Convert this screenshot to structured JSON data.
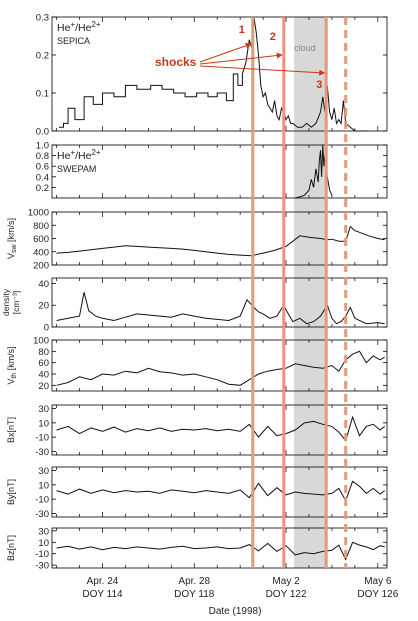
{
  "figure": {
    "xlabel": "Date (1998)",
    "x_ticks": [
      {
        "doy": 114,
        "line1": "Apr. 24",
        "line2": "DOY 114"
      },
      {
        "doy": 118,
        "line1": "Apr. 28",
        "line2": "DOY 118"
      },
      {
        "doy": 122,
        "line1": "May 2",
        "line2": "DOY 122"
      },
      {
        "doy": 126,
        "line1": "May 6",
        "line2": "DOY 126"
      }
    ],
    "xlim": [
      111.8,
      126.4
    ],
    "cloud": {
      "label": "cloud",
      "start": 122.35,
      "end": 123.7
    },
    "shocks_label": "shocks",
    "shocks": [
      {
        "label": "1",
        "doy": 120.55,
        "style": "solid"
      },
      {
        "label": "2",
        "doy": 121.9,
        "style": "solid"
      },
      {
        "label": "3",
        "doy": 123.75,
        "style": "solid"
      },
      {
        "label": "",
        "doy": 124.6,
        "style": "dashed"
      }
    ],
    "colors": {
      "shock": "#e8977a",
      "shock_label": "#c8381a",
      "cloud": "#d8d8d8",
      "trace": "#111111",
      "cloud_trace": "#888888"
    }
  },
  "chart_data": [
    {
      "type": "line",
      "id": "sepica",
      "title_main": "He",
      "title_sup1": "+",
      "title_mid": "/He",
      "title_sup2": "2+",
      "subtitle": "SEPICA",
      "ylabel": "",
      "ylim": [
        0,
        0.3
      ],
      "yticks": [
        0.0,
        0.1,
        0.2,
        0.3
      ],
      "ytick_labels": [
        "0.0",
        "0.1",
        "0.2",
        "0.3"
      ],
      "x": [
        112.1,
        112.3,
        112.3,
        112.5,
        112.5,
        112.8,
        112.8,
        113.2,
        113.2,
        113.6,
        113.6,
        114.0,
        114.0,
        114.5,
        114.5,
        115.0,
        115.0,
        115.5,
        115.5,
        116.1,
        116.1,
        116.6,
        116.6,
        117.1,
        117.1,
        117.6,
        117.6,
        118.1,
        118.1,
        118.6,
        118.6,
        119.0,
        119.0,
        119.4,
        119.4,
        119.7,
        119.7,
        119.9,
        119.9,
        120.1,
        120.1,
        120.25,
        120.4,
        120.5,
        120.6,
        120.7,
        120.8,
        120.9,
        121.0,
        121.1,
        121.2,
        121.3,
        121.4,
        121.5,
        121.6,
        121.7,
        121.8,
        121.9,
        122.0,
        122.1,
        122.2,
        122.3,
        122.5,
        122.7,
        122.9,
        123.1,
        123.3,
        123.5,
        123.6,
        123.7,
        123.8,
        123.9,
        124.0,
        124.1,
        124.2,
        124.3,
        124.4,
        124.5,
        124.6,
        124.8,
        125.0,
        125.3,
        125.6
      ],
      "values": [
        0.01,
        0.01,
        0.02,
        0.02,
        0.06,
        0.06,
        0.03,
        0.03,
        0.09,
        0.09,
        0.07,
        0.07,
        0.1,
        0.1,
        0.09,
        0.09,
        0.12,
        0.12,
        0.11,
        0.11,
        0.12,
        0.12,
        0.11,
        0.11,
        0.1,
        0.1,
        0.09,
        0.09,
        0.1,
        0.1,
        0.09,
        0.09,
        0.1,
        0.1,
        0.08,
        0.08,
        0.15,
        0.15,
        0.12,
        0.12,
        0.15,
        0.18,
        0.24,
        0.22,
        0.3,
        0.26,
        0.2,
        0.12,
        0.09,
        0.1,
        0.07,
        0.06,
        0.05,
        0.08,
        0.04,
        0.03,
        0.06,
        0.05,
        0.03,
        0.04,
        0.02,
        0.02,
        0.01,
        0.01,
        0.02,
        0.01,
        0.02,
        0.05,
        0.09,
        0.05,
        0.12,
        0.05,
        0.03,
        0.06,
        0.02,
        0.03,
        0.02,
        0.08,
        0.02,
        0.01,
        0.0,
        0.0,
        0.0
      ]
    },
    {
      "type": "line",
      "id": "swepam",
      "title_main": "He",
      "title_sup1": "+",
      "title_mid": "/He",
      "title_sup2": "2+",
      "subtitle": "SWEPAM",
      "ylabel": "",
      "ylim": [
        0,
        1.0
      ],
      "yticks": [
        0.2,
        0.4,
        0.6,
        0.8,
        1.0
      ],
      "ytick_labels": [
        "0.2",
        "0.4",
        "0.6",
        "0.8",
        "1.0"
      ],
      "x": [
        122.4,
        122.6,
        122.8,
        123.0,
        123.1,
        123.2,
        123.3,
        123.4,
        123.45,
        123.5,
        123.55,
        123.6,
        123.65,
        123.7,
        123.8,
        123.9,
        124.0
      ],
      "values": [
        0.0,
        0.02,
        0.05,
        0.15,
        0.35,
        0.2,
        0.55,
        0.3,
        0.7,
        0.9,
        0.4,
        1.0,
        0.6,
        0.8,
        0.4,
        0.15,
        0.05
      ]
    },
    {
      "type": "line",
      "id": "vsw",
      "ylabel": "V",
      "ylabel_sub": "sw",
      "ylabel_units": " [km/s]",
      "ylim": [
        200,
        1000
      ],
      "yticks": [
        200,
        400,
        600,
        800,
        1000
      ],
      "ytick_labels": [
        "200",
        "400",
        "600",
        "800",
        "1000"
      ],
      "x": [
        112.0,
        112.5,
        113.0,
        113.5,
        114.0,
        114.5,
        115.0,
        115.5,
        116.0,
        116.5,
        117.0,
        117.5,
        118.0,
        118.5,
        119.0,
        119.5,
        120.0,
        120.5,
        121.0,
        121.5,
        122.0,
        122.3,
        122.6,
        123.0,
        123.5,
        123.8,
        124.0,
        124.3,
        124.6,
        124.8,
        125.0,
        125.3,
        125.6,
        126.0,
        126.3
      ],
      "values": [
        380,
        390,
        410,
        430,
        450,
        470,
        490,
        480,
        470,
        460,
        450,
        440,
        420,
        400,
        380,
        360,
        350,
        340,
        380,
        420,
        480,
        560,
        640,
        620,
        600,
        580,
        590,
        560,
        560,
        780,
        720,
        680,
        640,
        600,
        580
      ]
    },
    {
      "type": "line",
      "id": "density",
      "ylabel": "density",
      "ylabel_units": "[cm⁻³]",
      "ylim": [
        0,
        45
      ],
      "yticks": [
        0,
        20,
        40
      ],
      "ytick_labels": [
        "0",
        "20",
        "40"
      ],
      "x": [
        112.0,
        112.5,
        113.0,
        113.2,
        113.4,
        113.7,
        114.0,
        114.5,
        115.0,
        115.5,
        116.0,
        116.5,
        117.0,
        117.5,
        118.0,
        118.5,
        119.0,
        119.5,
        120.0,
        120.3,
        120.6,
        120.8,
        121.0,
        121.3,
        121.6,
        121.9,
        122.1,
        122.3,
        122.6,
        122.9,
        123.2,
        123.5,
        123.8,
        124.0,
        124.2,
        124.4,
        124.6,
        124.8,
        125.0,
        125.5,
        126.0,
        126.3
      ],
      "values": [
        6,
        8,
        10,
        32,
        15,
        10,
        8,
        6,
        9,
        12,
        11,
        10,
        9,
        12,
        10,
        8,
        7,
        6,
        10,
        25,
        18,
        14,
        12,
        8,
        10,
        20,
        12,
        5,
        8,
        3,
        5,
        10,
        20,
        8,
        3,
        5,
        10,
        18,
        8,
        3,
        4,
        3
      ]
    },
    {
      "type": "line",
      "id": "vth",
      "ylabel": "V",
      "ylabel_sub": "th",
      "ylabel_units": " [km/s]",
      "ylim": [
        10,
        100
      ],
      "yticks": [
        20,
        40,
        60,
        80,
        100
      ],
      "ytick_labels": [
        "20",
        "40",
        "60",
        "80",
        "100"
      ],
      "x": [
        112.0,
        112.5,
        113.0,
        113.5,
        114.0,
        114.5,
        115.0,
        115.5,
        116.0,
        116.5,
        117.0,
        117.5,
        118.0,
        118.5,
        119.0,
        119.5,
        120.0,
        120.4,
        120.8,
        121.2,
        121.6,
        122.0,
        122.4,
        122.8,
        123.2,
        123.6,
        124.0,
        124.3,
        124.6,
        124.9,
        125.2,
        125.5,
        125.8,
        126.1,
        126.3
      ],
      "values": [
        20,
        25,
        35,
        30,
        40,
        38,
        45,
        42,
        50,
        44,
        42,
        38,
        40,
        35,
        30,
        22,
        20,
        30,
        40,
        45,
        48,
        50,
        58,
        55,
        52,
        50,
        55,
        45,
        65,
        75,
        80,
        60,
        72,
        65,
        70
      ]
    },
    {
      "type": "line",
      "id": "bx",
      "ylabel": "Bx[nT]",
      "ylim": [
        -35,
        35
      ],
      "yticks": [
        -30,
        -10,
        10,
        30
      ],
      "ytick_labels": [
        "-30",
        "-10",
        "10",
        "30"
      ],
      "x": [
        112.0,
        112.5,
        113.0,
        113.5,
        114.0,
        114.5,
        115.0,
        115.5,
        116.0,
        116.5,
        117.0,
        117.5,
        118.0,
        118.5,
        119.0,
        119.5,
        120.0,
        120.4,
        120.8,
        121.2,
        121.6,
        122.0,
        122.4,
        122.8,
        123.2,
        123.6,
        124.0,
        124.3,
        124.6,
        124.9,
        125.2,
        125.5,
        125.8,
        126.1,
        126.3
      ],
      "values": [
        0,
        5,
        -5,
        3,
        -2,
        4,
        -3,
        2,
        -1,
        3,
        -2,
        1,
        0,
        2,
        -1,
        1,
        -2,
        8,
        -10,
        5,
        -8,
        -5,
        0,
        10,
        12,
        8,
        5,
        -3,
        -15,
        18,
        -8,
        5,
        8,
        0,
        5
      ]
    },
    {
      "type": "line",
      "id": "by",
      "ylabel": "By[nT]",
      "ylim": [
        -35,
        35
      ],
      "yticks": [
        -30,
        -10,
        10,
        30
      ],
      "ytick_labels": [
        "-30",
        "-10",
        "10",
        "30"
      ],
      "x": [
        112.0,
        112.5,
        113.0,
        113.5,
        114.0,
        114.5,
        115.0,
        115.5,
        116.0,
        116.5,
        117.0,
        117.5,
        118.0,
        118.5,
        119.0,
        119.5,
        120.0,
        120.4,
        120.8,
        121.2,
        121.6,
        122.0,
        122.4,
        122.8,
        123.2,
        123.6,
        124.0,
        124.3,
        124.6,
        124.9,
        125.2,
        125.5,
        125.8,
        126.1,
        126.3
      ],
      "values": [
        2,
        -3,
        4,
        -2,
        3,
        -1,
        2,
        0,
        1,
        -2,
        3,
        1,
        -1,
        2,
        0,
        -2,
        3,
        -8,
        12,
        -5,
        6,
        -4,
        0,
        -2,
        -3,
        -4,
        -2,
        5,
        -12,
        15,
        8,
        -2,
        5,
        -3,
        2
      ]
    },
    {
      "type": "line",
      "id": "bz",
      "ylabel": "Bz[nT]",
      "ylim": [
        -35,
        35
      ],
      "yticks": [
        -30,
        -10,
        10,
        30
      ],
      "ytick_labels": [
        "-30",
        "-10",
        "10",
        "30"
      ],
      "x": [
        112.0,
        112.5,
        113.0,
        113.5,
        114.0,
        114.5,
        115.0,
        115.5,
        116.0,
        116.5,
        117.0,
        117.5,
        118.0,
        118.5,
        119.0,
        119.5,
        120.0,
        120.4,
        120.8,
        121.2,
        121.6,
        122.0,
        122.4,
        122.8,
        123.2,
        123.6,
        124.0,
        124.3,
        124.6,
        124.9,
        125.2,
        125.5,
        125.8,
        126.1,
        126.3
      ],
      "values": [
        0,
        3,
        -2,
        2,
        -3,
        1,
        -1,
        2,
        0,
        -2,
        1,
        3,
        -1,
        0,
        2,
        -1,
        0,
        6,
        -5,
        8,
        -6,
        4,
        -12,
        -8,
        -10,
        -6,
        -4,
        5,
        -20,
        10,
        5,
        2,
        -3,
        4,
        2
      ]
    }
  ]
}
